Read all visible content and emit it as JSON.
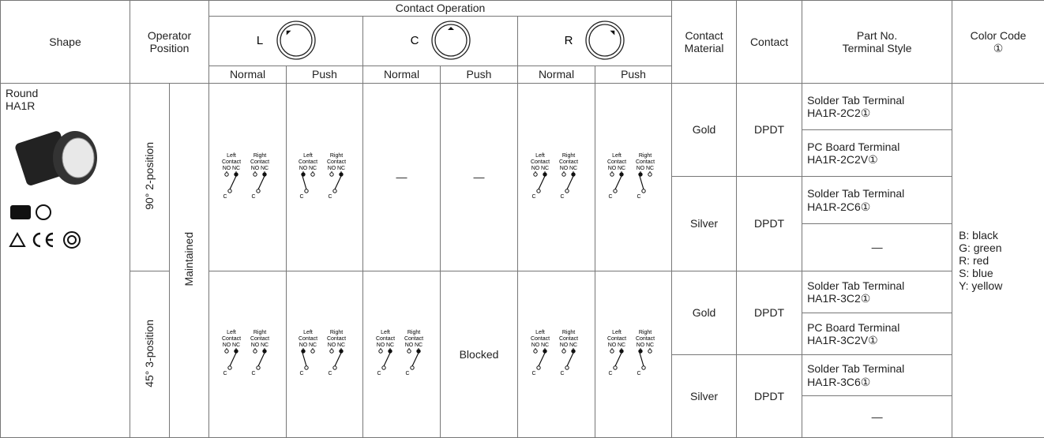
{
  "header": {
    "shape": "Shape",
    "operator_position": "Operator Position",
    "contact_operation": "Contact Operation",
    "positions": [
      "L",
      "C",
      "R"
    ],
    "normal": "Normal",
    "push": "Push",
    "contact_material": "Contact Material",
    "contact": "Contact",
    "part_no": "Part No.",
    "terminal_style": "Terminal Style",
    "color_code": "Color Code ①"
  },
  "shape": {
    "name": "Round",
    "model": "HA1R"
  },
  "operation_type": "Maintained",
  "diagram": {
    "left": "Left",
    "right": "Right",
    "contact": "Contact",
    "no": "NO",
    "nc": "NC",
    "common": "C"
  },
  "groups": [
    {
      "position": "90° 2-position",
      "operation": {
        "c_normal": "—",
        "c_push": "—"
      },
      "materials": [
        {
          "material": "Gold",
          "contact": "DPDT",
          "parts": [
            {
              "terminal": "Solder Tab Terminal",
              "part": "HA1R-2C2①"
            },
            {
              "terminal": "PC Board Terminal",
              "part": "HA1R-2C2V①"
            }
          ]
        },
        {
          "material": "Silver",
          "contact": "DPDT",
          "parts": [
            {
              "terminal": "Solder Tab Terminal",
              "part": "HA1R-2C6①"
            },
            {
              "part": "—"
            }
          ]
        }
      ]
    },
    {
      "position": "45° 3-position",
      "operation": {
        "c_push": "Blocked"
      },
      "materials": [
        {
          "material": "Gold",
          "contact": "DPDT",
          "parts": [
            {
              "terminal": "Solder Tab Terminal",
              "part": "HA1R-3C2①"
            },
            {
              "terminal": "PC Board Terminal",
              "part": "HA1R-3C2V①"
            }
          ]
        },
        {
          "material": "Silver",
          "contact": "DPDT",
          "parts": [
            {
              "terminal": "Solder Tab Terminal",
              "part": "HA1R-3C6①"
            },
            {
              "part": "—"
            }
          ]
        }
      ]
    }
  ],
  "color_codes": [
    "B: black",
    "G: green",
    "R: red",
    "S: blue",
    "Y: yellow"
  ]
}
